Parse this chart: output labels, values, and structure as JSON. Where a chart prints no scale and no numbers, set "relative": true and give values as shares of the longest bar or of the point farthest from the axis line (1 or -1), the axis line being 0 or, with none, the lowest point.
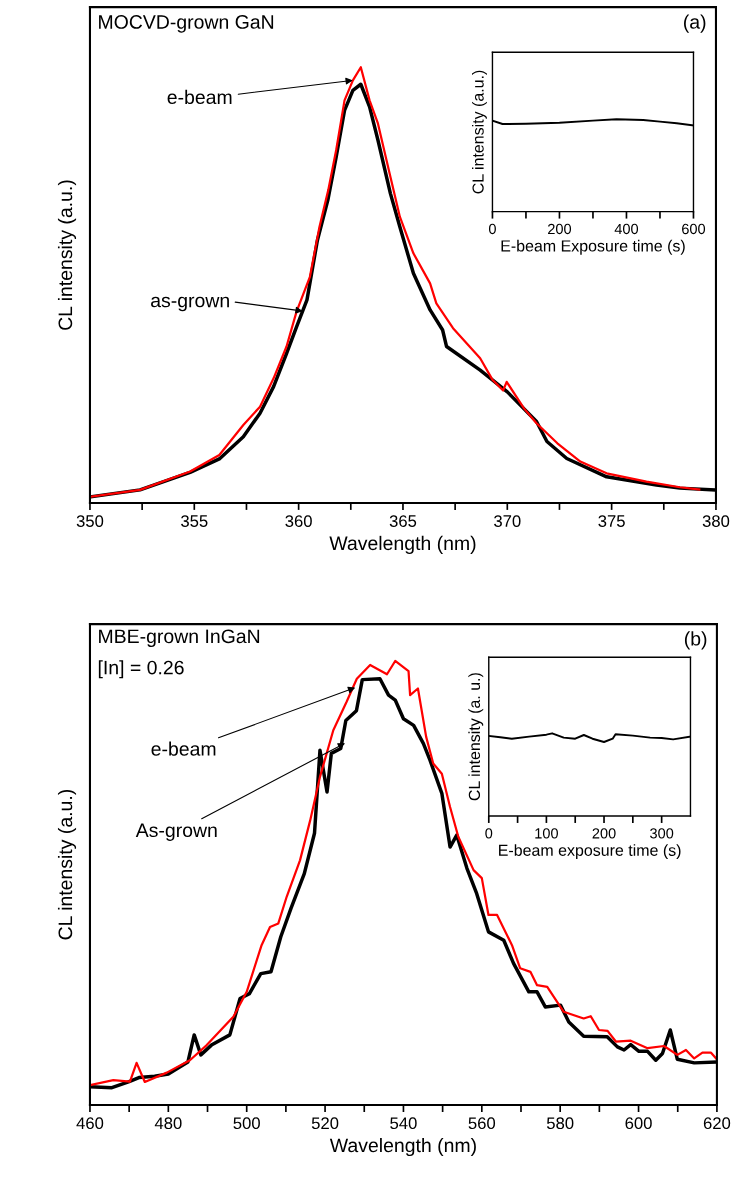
{
  "chart_data": [
    {
      "type": "line",
      "xlabel": "Wavelength (nm)",
      "ylabel": "CL intensity (a.u.)",
      "relative": true,
      "xlim": [
        350,
        380
      ],
      "xticks": [
        350,
        {
          "value": 352.5,
          "label": null
        },
        355,
        {
          "value": 357.5,
          "label": null
        },
        360,
        {
          "value": 362.5,
          "label": null
        },
        365,
        {
          "value": 367.5,
          "label": null
        },
        370,
        {
          "value": 372.5,
          "label": null
        },
        375,
        {
          "value": 377.5,
          "label": null
        },
        380
      ],
      "annotations": [
        "MOCVD-grown GaN",
        "(a)",
        {
          "text": "e-beam",
          "x": 362.6,
          "y": 0.97
        },
        "as-grown"
      ],
      "series": [
        {
          "color": "#000000",
          "x": [
            350.0,
            352.4,
            354.8,
            356.2,
            357.35,
            358.15,
            358.8,
            359.42,
            359.9,
            360.4,
            360.9,
            361.4,
            361.8,
            362.2,
            362.6,
            362.98,
            363.4,
            363.8,
            364.4,
            364.85,
            365.5,
            366.3,
            366.9,
            367.09,
            368.7,
            370.0,
            371.4,
            371.9,
            372.85,
            374.76,
            377.15,
            378.27,
            379.9
          ],
          "values": [
            0.014,
            0.03,
            0.07,
            0.101,
            0.152,
            0.206,
            0.267,
            0.343,
            0.404,
            0.466,
            0.603,
            0.695,
            0.794,
            0.901,
            0.947,
            0.961,
            0.909,
            0.833,
            0.71,
            0.634,
            0.527,
            0.443,
            0.397,
            0.359,
            0.305,
            0.255,
            0.187,
            0.141,
            0.102,
            0.06,
            0.041,
            0.034,
            0.03
          ]
        },
        {
          "color": "#ff0000",
          "x": [
            350.0,
            352.4,
            354.8,
            356.2,
            357.35,
            358.15,
            358.8,
            359.42,
            359.9,
            360.54,
            361.0,
            361.42,
            361.8,
            362.2,
            362.6,
            362.98,
            363.4,
            363.8,
            364.4,
            364.85,
            365.5,
            366.3,
            366.6,
            367.4,
            368.7,
            369.3,
            369.8,
            369.97,
            370.8,
            371.4,
            372.4,
            373.5,
            374.76,
            376.67,
            378.27,
            379.2
          ],
          "values": [
            0.014,
            0.03,
            0.072,
            0.11,
            0.179,
            0.221,
            0.286,
            0.359,
            0.439,
            0.519,
            0.634,
            0.718,
            0.81,
            0.924,
            0.97,
            1.0,
            0.924,
            0.871,
            0.748,
            0.657,
            0.573,
            0.504,
            0.458,
            0.401,
            0.332,
            0.282,
            0.258,
            0.278,
            0.217,
            0.183,
            0.137,
            0.095,
            0.068,
            0.049,
            0.036,
            0.031
          ]
        }
      ]
    },
    {
      "type": "line",
      "xlabel": "E-beam Exposure time (s)",
      "ylabel": "CL intensity (a.u.)",
      "relative": true,
      "xlim": [
        0,
        600
      ],
      "xticks": [
        0,
        {
          "value": 100,
          "label": null
        },
        200,
        {
          "value": 300,
          "label": null
        },
        400,
        {
          "value": 500,
          "label": null
        },
        600
      ],
      "series": [
        {
          "color": "#000000",
          "x": [
            0,
            30,
            100,
            200,
            300,
            370,
            450,
            500,
            550,
            600
          ],
          "values": [
            0.986,
            0.949,
            0.953,
            0.964,
            0.986,
            1.0,
            0.993,
            0.975,
            0.957,
            0.935
          ]
        }
      ]
    },
    {
      "type": "line",
      "xlabel": "Wavelength (nm)",
      "ylabel": "CL intensity (a.u.)",
      "relative": true,
      "xlim": [
        460,
        620
      ],
      "xticks": [
        460,
        {
          "value": 470,
          "label": null
        },
        480,
        {
          "value": 490,
          "label": null
        },
        500,
        {
          "value": 510,
          "label": null
        },
        520,
        {
          "value": 530,
          "label": null
        },
        540,
        {
          "value": 550,
          "label": null
        },
        560,
        {
          "value": 570,
          "label": null
        },
        580,
        {
          "value": 590,
          "label": null
        },
        600,
        {
          "value": 610,
          "label": null
        },
        620
      ],
      "annotations": [
        "MBE-grown InGaN",
        "[In] = 0.26",
        "(b)",
        {
          "text": "e-beam",
          "x": 527.7,
          "y": 0.94
        },
        {
          "text": "As-grown",
          "x": 525.1,
          "y": 0.815
        }
      ],
      "series": [
        {
          "color": "#000000",
          "x": [
            460,
            465.6,
            470,
            472.5,
            476.5,
            480,
            485.0,
            486.6,
            488.3,
            491,
            495.7,
            498.3,
            500.7,
            503.6,
            506.2,
            508.7,
            511.3,
            514.7,
            517.3,
            518.7,
            520.5,
            521.6,
            524.0,
            525.3,
            528.0,
            529.5,
            534.0,
            536.2,
            537.9,
            540.0,
            542.6,
            545.1,
            546.8,
            549.8,
            551.9,
            553.6,
            556.2,
            558.7,
            561.7,
            565.6,
            568.1,
            572.0,
            574.1,
            576.2,
            580.1,
            582.2,
            586.0,
            592.0,
            594.6,
            596.3,
            598.0,
            600.1,
            602.3,
            604.4,
            606.1,
            608.1,
            609.9,
            614.2,
            620
          ],
          "values": [
            0.041,
            0.039,
            0.053,
            0.062,
            0.065,
            0.07,
            0.097,
            0.158,
            0.113,
            0.135,
            0.158,
            0.24,
            0.251,
            0.296,
            0.3,
            0.379,
            0.443,
            0.521,
            0.612,
            0.799,
            0.705,
            0.792,
            0.803,
            0.866,
            0.888,
            0.958,
            0.96,
            0.923,
            0.912,
            0.87,
            0.855,
            0.814,
            0.776,
            0.702,
            0.581,
            0.608,
            0.533,
            0.476,
            0.39,
            0.371,
            0.319,
            0.255,
            0.255,
            0.221,
            0.225,
            0.187,
            0.155,
            0.154,
            0.131,
            0.124,
            0.136,
            0.121,
            0.121,
            0.101,
            0.116,
            0.169,
            0.103,
            0.095,
            0.097
          ]
        },
        {
          "color": "#ff0000",
          "x": [
            460,
            465.96,
            470.2,
            471.9,
            474.0,
            479.6,
            485.5,
            489.8,
            496.6,
            500.0,
            503.8,
            505.95,
            508.07,
            510.2,
            513.6,
            516.2,
            518.7,
            522.1,
            525.5,
            528.1,
            531.5,
            535.8,
            537.9,
            541.3,
            541.7,
            543.7,
            545.8,
            547.6,
            549.8,
            551.9,
            554.0,
            557.9,
            560.0,
            561.7,
            563.9,
            567.7,
            569.8,
            572.4,
            574.1,
            576.7,
            580.9,
            586.0,
            587.8,
            589.9,
            592.1,
            594.2,
            598.0,
            602.3,
            606.5,
            609.9,
            612.1,
            614.2,
            616.3,
            618.5,
            620
          ],
          "values": [
            0.045,
            0.056,
            0.053,
            0.095,
            0.052,
            0.073,
            0.101,
            0.135,
            0.199,
            0.255,
            0.36,
            0.401,
            0.409,
            0.469,
            0.551,
            0.641,
            0.739,
            0.844,
            0.908,
            0.96,
            0.991,
            0.97,
            1.0,
            0.977,
            0.923,
            0.938,
            0.829,
            0.769,
            0.746,
            0.671,
            0.604,
            0.529,
            0.511,
            0.428,
            0.428,
            0.36,
            0.308,
            0.3,
            0.27,
            0.266,
            0.21,
            0.195,
            0.2,
            0.169,
            0.167,
            0.143,
            0.145,
            0.128,
            0.133,
            0.113,
            0.124,
            0.105,
            0.118,
            0.118,
            0.103
          ]
        }
      ]
    },
    {
      "type": "line",
      "xlabel": "E-beam exposure time (s)",
      "ylabel": "CL intensity (a. u.)",
      "relative": true,
      "xlim": [
        0,
        350
      ],
      "xticks": [
        0,
        {
          "value": 50,
          "label": null
        },
        100,
        {
          "value": 150,
          "label": null
        },
        200,
        {
          "value": 250,
          "label": null
        },
        300
      ],
      "series": [
        {
          "color": "#000000",
          "x": [
            0,
            20,
            40,
            70,
            100,
            110,
            130,
            150,
            165,
            180,
            200,
            215,
            220,
            250,
            280,
            300,
            320,
            350
          ],
          "values": [
            0.968,
            0.952,
            0.935,
            0.96,
            0.984,
            1.0,
            0.948,
            0.935,
            0.98,
            0.935,
            0.895,
            0.935,
            0.988,
            0.972,
            0.948,
            0.944,
            0.927,
            0.96
          ]
        }
      ]
    }
  ]
}
